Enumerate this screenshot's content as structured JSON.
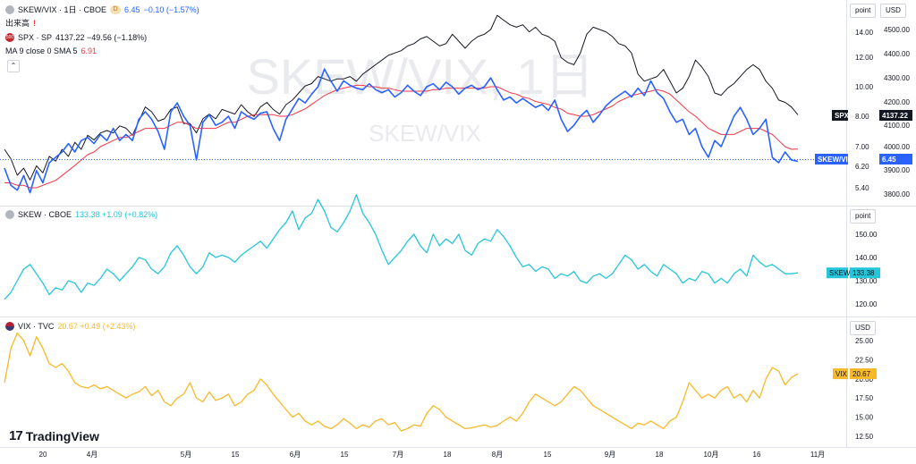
{
  "watermark": {
    "main": "SKEW/VIX, 1日",
    "sub": "SKEW/VIX"
  },
  "logo": "TradingView",
  "main_legend": {
    "symbol": "SKEW/VIX · 1日 · CBOE",
    "badge": "D",
    "value": "6.45",
    "change": "−0.10 (−1.57%)",
    "volume_label": "出来高",
    "volume_flag": "!",
    "spx_icon": "500",
    "spx_label": "SPX · SP",
    "spx_values": "4137.22 −49.56 (−1.18%)",
    "ma_label": "MA 9 close 0 SMA 5",
    "ma_value": "6.91"
  },
  "skew_legend": {
    "label": "SKEW · CBOE",
    "values": "133.38 +1.09 (+0.82%)"
  },
  "vix_legend": {
    "label": "VIX · TVC",
    "values": "20.67 +0.49 (+2.43%)"
  },
  "scale_buttons": {
    "point": "point",
    "usd": "USD",
    "point2": "point",
    "usd2": "USD"
  },
  "x_labels": [
    "20",
    "4月",
    "5月",
    "15",
    "6月",
    "15",
    "7月",
    "18",
    "8月",
    "15",
    "9月",
    "18",
    "10月",
    "16",
    "11月"
  ],
  "colors": {
    "ratio": "#2962ff",
    "spx": "#131722",
    "ma": "#f23645",
    "skew": "#26c6da",
    "vix": "#f7b928"
  },
  "chart_data": [
    {
      "type": "line",
      "title": "SKEW/VIX · 1日 · CBOE",
      "y_left_ticks": [
        "14.00",
        "12.00",
        "10.00",
        "8.00",
        "7.00",
        "6.20",
        "5.40"
      ],
      "y_right_ticks": [
        "4500.00",
        "4400.00",
        "4300.00",
        "4200.00",
        "4100.00",
        "4000.00",
        "3900.00",
        "3800.00"
      ],
      "price_labels": [
        {
          "name": "SPX",
          "value": "4137.22"
        },
        {
          "name": "SKEW/VIX",
          "value": "6.45"
        }
      ],
      "series": [
        {
          "name": "SKEW/VIX",
          "values": [
            6.2,
            5.5,
            5.3,
            5.9,
            5.2,
            6.1,
            5.6,
            6.4,
            6.6,
            6.8,
            7.1,
            6.8,
            7.2,
            7.3,
            7.1,
            7.4,
            7.2,
            7.6,
            7.2,
            7.4,
            7.2,
            7.9,
            8.3,
            7.9,
            7.5,
            6.9,
            8.3,
            8.9,
            8.0,
            7.7,
            6.5,
            7.8,
            8.1,
            7.7,
            7.8,
            8.0,
            7.6,
            8.3,
            8.0,
            7.9,
            8.2,
            8.3,
            7.6,
            7.2,
            7.9,
            8.5,
            9.2,
            8.9,
            9.5,
            10.0,
            11.2,
            10.4,
            9.7,
            10.4,
            10.1,
            9.9,
            9.8,
            10.2,
            9.8,
            9.6,
            9.8,
            9.3,
            9.6,
            10.1,
            9.7,
            9.4,
            10.0,
            10.2,
            9.8,
            10.3,
            10.0,
            9.5,
            9.9,
            10.1,
            9.8,
            10.0,
            10.6,
            9.8,
            9.1,
            9.3,
            8.9,
            9.2,
            8.9,
            8.6,
            8.8,
            8.4,
            9.1,
            7.9,
            7.5,
            7.7,
            8.0,
            8.4,
            7.8,
            8.1,
            8.7,
            9.1,
            9.4,
            9.7,
            9.3,
            9.9,
            9.4,
            10.4,
            9.6,
            9.2,
            8.3,
            7.8,
            7.9,
            7.4,
            7.6,
            7.0,
            6.6,
            7.2,
            7.0,
            7.5,
            8.0,
            8.6,
            7.9,
            7.4,
            7.6,
            7.9,
            6.6,
            6.4,
            6.8,
            6.5,
            6.45
          ]
        },
        {
          "name": "SPX",
          "values": [
            3990,
            3950,
            3880,
            3910,
            3860,
            3920,
            3890,
            3960,
            3940,
            3990,
            3960,
            4020,
            3990,
            4050,
            4030,
            4060,
            4070,
            4060,
            4090,
            4080,
            4050,
            4110,
            4170,
            4150,
            4110,
            4120,
            4160,
            4170,
            4100,
            4100,
            4060,
            4120,
            4140,
            4120,
            4160,
            4150,
            4140,
            4180,
            4150,
            4130,
            4170,
            4190,
            4160,
            4140,
            4180,
            4200,
            4230,
            4260,
            4270,
            4300,
            4290,
            4280,
            4290,
            4290,
            4300,
            4280,
            4310,
            4330,
            4350,
            4370,
            4390,
            4400,
            4410,
            4430,
            4440,
            4460,
            4470,
            4450,
            4430,
            4440,
            4480,
            4450,
            4420,
            4450,
            4470,
            4480,
            4500,
            4560,
            4540,
            4520,
            4510,
            4520,
            4490,
            4510,
            4480,
            4470,
            4450,
            4380,
            4360,
            4350,
            4400,
            4480,
            4510,
            4500,
            4490,
            4470,
            4440,
            4430,
            4400,
            4310,
            4280,
            4290,
            4300,
            4330,
            4280,
            4230,
            4250,
            4300,
            4370,
            4340,
            4300,
            4230,
            4220,
            4250,
            4270,
            4300,
            4330,
            4350,
            4330,
            4280,
            4250,
            4200,
            4190,
            4170,
            4137
          ]
        },
        {
          "name": "MA 9 close 0 SMA 5",
          "values": [
            5.6,
            5.6,
            5.5,
            5.5,
            5.4,
            5.4,
            5.5,
            5.6,
            5.7,
            5.9,
            6.1,
            6.3,
            6.5,
            6.7,
            6.8,
            7.0,
            7.1,
            7.2,
            7.3,
            7.3,
            7.4,
            7.5,
            7.6,
            7.6,
            7.6,
            7.6,
            7.7,
            7.8,
            7.8,
            7.7,
            7.6,
            7.6,
            7.6,
            7.6,
            7.7,
            7.8,
            7.8,
            7.9,
            8.0,
            8.1,
            8.1,
            8.1,
            8.1,
            8.0,
            8.0,
            8.1,
            8.3,
            8.5,
            8.8,
            9.1,
            9.4,
            9.6,
            9.8,
            9.9,
            10.0,
            10.1,
            10.1,
            10.0,
            10.0,
            9.9,
            9.9,
            9.8,
            9.7,
            9.7,
            9.7,
            9.7,
            9.7,
            9.8,
            9.8,
            9.9,
            9.9,
            9.9,
            9.9,
            9.9,
            9.9,
            9.9,
            10.0,
            10.0,
            9.8,
            9.6,
            9.5,
            9.3,
            9.2,
            9.0,
            8.9,
            8.8,
            8.6,
            8.5,
            8.2,
            8.1,
            8.0,
            8.0,
            8.1,
            8.3,
            8.5,
            8.7,
            9.0,
            9.2,
            9.4,
            9.5,
            9.6,
            9.7,
            9.8,
            9.7,
            9.5,
            9.1,
            8.7,
            8.3,
            8.0,
            7.8,
            7.6,
            7.5,
            7.4,
            7.4,
            7.4,
            7.5,
            7.6,
            7.6,
            7.6,
            7.5,
            7.4,
            7.2,
            7.0,
            6.9,
            6.91
          ]
        }
      ]
    },
    {
      "type": "line",
      "title": "SKEW · CBOE",
      "y_ticks": [
        "150.00",
        "140.00",
        "130.00",
        "120.00"
      ],
      "price_labels": [
        {
          "name": "SKEW",
          "value": "133.38"
        }
      ],
      "series": [
        {
          "name": "SKEW",
          "values": [
            122,
            125,
            130,
            135,
            137,
            133,
            129,
            124,
            127,
            126,
            130,
            129,
            125,
            129,
            128,
            131,
            135,
            133,
            130,
            133,
            136,
            140,
            139,
            135,
            133,
            136,
            142,
            145,
            141,
            136,
            133,
            136,
            142,
            140,
            141,
            140,
            138,
            141,
            143,
            145,
            147,
            144,
            148,
            152,
            155,
            160,
            152,
            157,
            159,
            165,
            160,
            153,
            151,
            155,
            160,
            167,
            159,
            155,
            150,
            143,
            137,
            140,
            143,
            147,
            150,
            145,
            142,
            150,
            145,
            148,
            146,
            150,
            143,
            141,
            146,
            148,
            147,
            152,
            149,
            145,
            140,
            136,
            137,
            134,
            136,
            135,
            131,
            133,
            132,
            134,
            130,
            129,
            132,
            133,
            131,
            133,
            137,
            141,
            139,
            135,
            137,
            134,
            132,
            137,
            135,
            133,
            129,
            131,
            130,
            134,
            133,
            129,
            131,
            129,
            133,
            135,
            132,
            141,
            138,
            136,
            137,
            135,
            133,
            133,
            133.38
          ]
        }
      ]
    },
    {
      "type": "line",
      "title": "VIX · TVC",
      "y_ticks": [
        "25.00",
        "22.50",
        "20.00",
        "17.50",
        "15.00",
        "12.50"
      ],
      "price_labels": [
        {
          "name": "VIX",
          "value": "20.67"
        }
      ],
      "series": [
        {
          "name": "VIX",
          "values": [
            19.5,
            24.0,
            26.0,
            25.0,
            23.0,
            25.5,
            24.0,
            22.0,
            21.5,
            22.0,
            21.0,
            19.5,
            19.0,
            18.8,
            19.2,
            18.7,
            19.0,
            18.5,
            18.0,
            17.5,
            18.0,
            18.3,
            19.0,
            17.8,
            18.5,
            17.0,
            16.5,
            17.5,
            18.0,
            19.5,
            17.5,
            17.0,
            18.3,
            17.2,
            17.5,
            18.0,
            16.5,
            17.0,
            18.0,
            18.5,
            20.0,
            19.2,
            18.0,
            17.0,
            16.0,
            15.0,
            15.5,
            14.5,
            14.0,
            14.5,
            13.8,
            13.5,
            14.0,
            14.8,
            14.2,
            13.5,
            14.0,
            13.7,
            14.5,
            14.8,
            14.0,
            14.3,
            13.2,
            13.5,
            14.0,
            13.8,
            15.5,
            16.5,
            16.0,
            15.0,
            14.5,
            14.0,
            13.5,
            13.6,
            13.8,
            14.0,
            13.7,
            13.9,
            14.5,
            15.0,
            14.5,
            15.5,
            17.0,
            18.0,
            17.5,
            17.0,
            16.5,
            17.0,
            18.0,
            19.0,
            18.5,
            17.5,
            16.5,
            16.0,
            15.5,
            15.0,
            14.5,
            14.0,
            13.5,
            14.2,
            14.0,
            14.5,
            14.0,
            13.5,
            14.5,
            15.0,
            17.0,
            19.5,
            18.5,
            17.5,
            18.0,
            17.5,
            18.5,
            19.0,
            17.5,
            18.0,
            17.0,
            18.5,
            17.5,
            20.0,
            21.5,
            21.0,
            19.2,
            20.2,
            20.67
          ]
        }
      ]
    }
  ]
}
